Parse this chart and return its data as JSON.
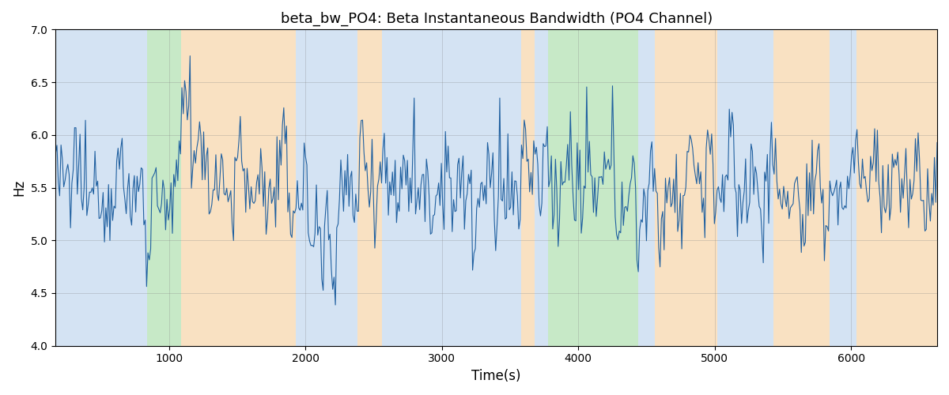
{
  "title": "beta_bw_PO4: Beta Instantaneous Bandwidth (PO4 Channel)",
  "xlabel": "Time(s)",
  "ylabel": "Hz",
  "ylim": [
    4.0,
    7.0
  ],
  "xlim": [
    170,
    6630
  ],
  "yticks": [
    4.0,
    4.5,
    5.0,
    5.5,
    6.0,
    6.5,
    7.0
  ],
  "line_color": "#2060a0",
  "line_width": 0.8,
  "bg_regions": [
    {
      "xstart": 170,
      "xend": 840,
      "color": "#aac8e8",
      "alpha": 0.5
    },
    {
      "xstart": 840,
      "xend": 1090,
      "color": "#90d490",
      "alpha": 0.5
    },
    {
      "xstart": 1090,
      "xend": 1930,
      "color": "#f5c990",
      "alpha": 0.55
    },
    {
      "xstart": 1930,
      "xend": 2380,
      "color": "#aac8e8",
      "alpha": 0.5
    },
    {
      "xstart": 2380,
      "xend": 2560,
      "color": "#f5c990",
      "alpha": 0.55
    },
    {
      "xstart": 2560,
      "xend": 3580,
      "color": "#aac8e8",
      "alpha": 0.5
    },
    {
      "xstart": 3580,
      "xend": 3680,
      "color": "#f5c990",
      "alpha": 0.55
    },
    {
      "xstart": 3680,
      "xend": 3780,
      "color": "#aac8e8",
      "alpha": 0.5
    },
    {
      "xstart": 3780,
      "xend": 4440,
      "color": "#90d490",
      "alpha": 0.5
    },
    {
      "xstart": 4440,
      "xend": 4560,
      "color": "#aac8e8",
      "alpha": 0.5
    },
    {
      "xstart": 4560,
      "xend": 5020,
      "color": "#f5c990",
      "alpha": 0.55
    },
    {
      "xstart": 5020,
      "xend": 5430,
      "color": "#aac8e8",
      "alpha": 0.5
    },
    {
      "xstart": 5430,
      "xend": 5840,
      "color": "#f5c990",
      "alpha": 0.55
    },
    {
      "xstart": 5840,
      "xend": 6040,
      "color": "#aac8e8",
      "alpha": 0.5
    },
    {
      "xstart": 6040,
      "xend": 6630,
      "color": "#f5c990",
      "alpha": 0.55
    }
  ],
  "seed": 12345,
  "n_points": 650,
  "time_start": 170,
  "time_end": 6630
}
